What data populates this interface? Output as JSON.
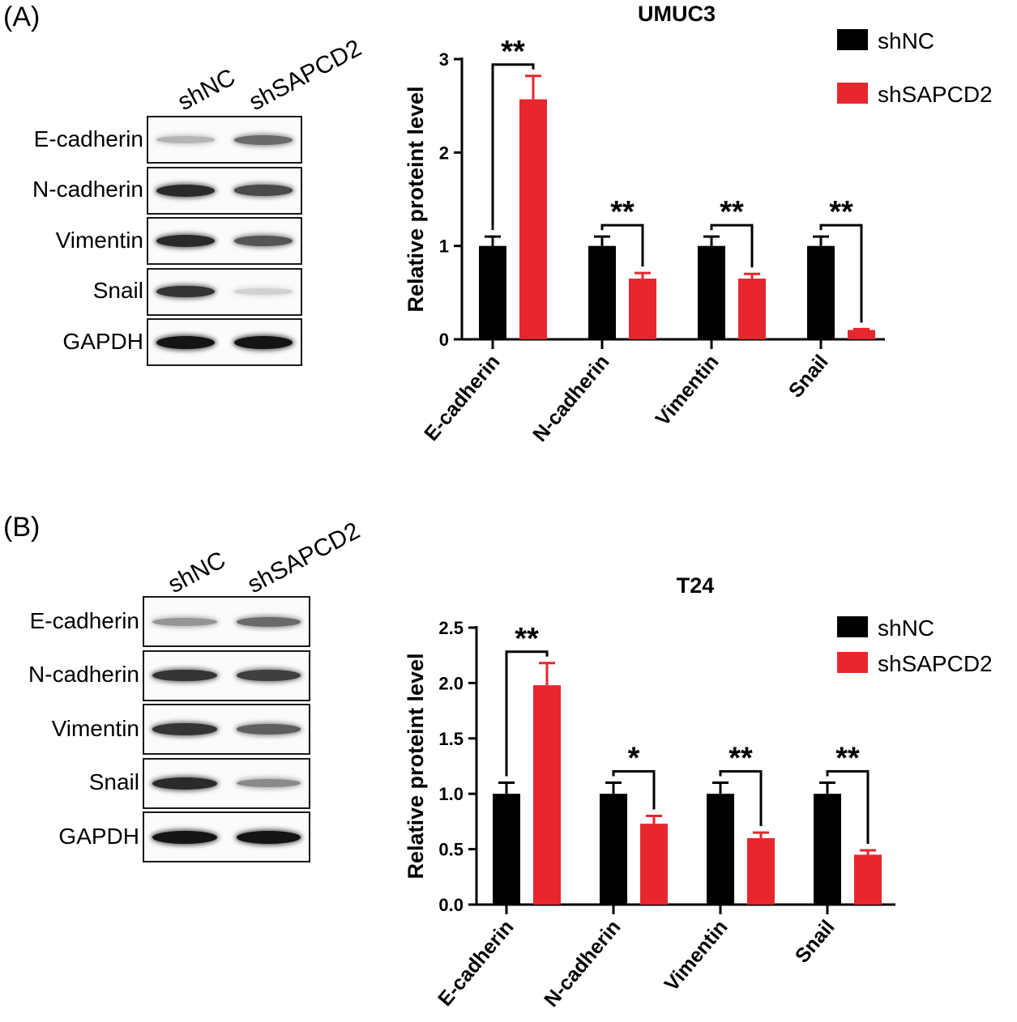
{
  "panels": [
    {
      "label": "(A)",
      "blot": {
        "lanes": [
          "shNC",
          "shSAPCD2"
        ],
        "bands": [
          {
            "name": "E-cadherin",
            "intensity": [
              0.25,
              0.6
            ]
          },
          {
            "name": "N-cadherin",
            "intensity": [
              0.9,
              0.75
            ]
          },
          {
            "name": "Vimentin",
            "intensity": [
              0.9,
              0.7
            ]
          },
          {
            "name": "Snail",
            "intensity": [
              0.85,
              0.12
            ]
          },
          {
            "name": "GAPDH",
            "intensity": [
              1.0,
              1.0
            ]
          }
        ]
      }
    },
    {
      "label": "(B)",
      "blot": {
        "lanes": [
          "shNC",
          "shSAPCD2"
        ],
        "bands": [
          {
            "name": "E-cadherin",
            "intensity": [
              0.4,
              0.6
            ]
          },
          {
            "name": "N-cadherin",
            "intensity": [
              0.85,
              0.8
            ]
          },
          {
            "name": "Vimentin",
            "intensity": [
              0.85,
              0.65
            ]
          },
          {
            "name": "Snail",
            "intensity": [
              0.9,
              0.45
            ]
          },
          {
            "name": "GAPDH",
            "intensity": [
              1.0,
              1.0
            ]
          }
        ]
      }
    }
  ],
  "chart_data": [
    {
      "type": "bar",
      "title": "UMUC3",
      "ylabel": "Relative proteint level",
      "categories": [
        "E-cadherin",
        "N-cadherin",
        "Vimentin",
        "Snail"
      ],
      "ylim": [
        0,
        3
      ],
      "yticks": [
        "0",
        "1",
        "2",
        "3"
      ],
      "series": [
        {
          "name": "shNC",
          "color": "#000000",
          "values": [
            1.0,
            1.0,
            1.0,
            1.0
          ],
          "errors": [
            0.1,
            0.1,
            0.1,
            0.1
          ]
        },
        {
          "name": "shSAPCD2",
          "color": "#e8262d",
          "values": [
            2.57,
            0.65,
            0.65,
            0.1
          ],
          "errors": [
            0.25,
            0.06,
            0.05,
            0.01
          ]
        }
      ],
      "significance": [
        "**",
        "**",
        "**",
        "**"
      ],
      "legend": "top-right"
    },
    {
      "type": "bar",
      "title": "T24",
      "ylabel": "Relative proteint level",
      "categories": [
        "E-cadherin",
        "N-cadherin",
        "Vimentin",
        "Snail"
      ],
      "ylim": [
        0,
        2.5
      ],
      "yticks": [
        "0.0",
        "0.5",
        "1.0",
        "1.5",
        "2.0",
        "2.5"
      ],
      "series": [
        {
          "name": "shNC",
          "color": "#000000",
          "values": [
            1.0,
            1.0,
            1.0,
            1.0
          ],
          "errors": [
            0.1,
            0.1,
            0.1,
            0.1
          ]
        },
        {
          "name": "shSAPCD2",
          "color": "#e8262d",
          "values": [
            1.98,
            0.73,
            0.6,
            0.45
          ],
          "errors": [
            0.2,
            0.07,
            0.05,
            0.04
          ]
        }
      ],
      "significance": [
        "**",
        "*",
        "**",
        "**"
      ],
      "legend": "top-right"
    }
  ]
}
